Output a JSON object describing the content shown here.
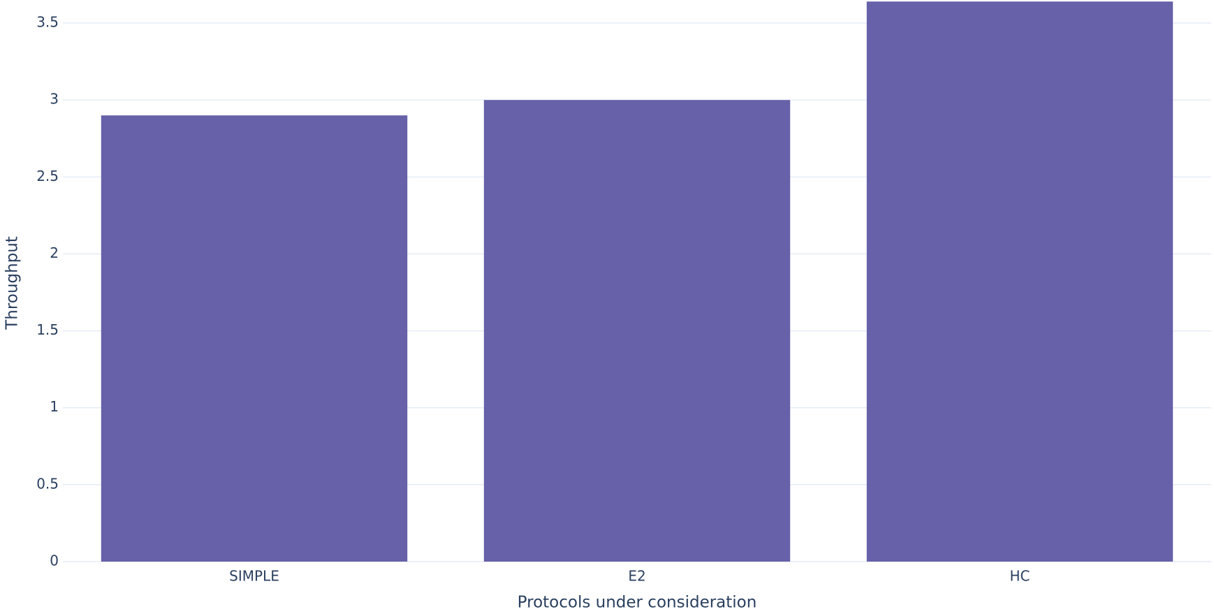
{
  "chart_data": {
    "type": "bar",
    "x_label": "Protocols under consideration",
    "y_label": "Throughput",
    "categories": [
      "SIMPLE",
      "E2",
      "HC"
    ],
    "values": [
      2.9,
      3.0,
      3.64
    ],
    "color": "#6661a8",
    "ylim": [
      0,
      3.65
    ],
    "yticks": [
      0,
      0.5,
      1,
      1.5,
      2,
      2.5,
      3,
      3.5
    ],
    "grid": true
  }
}
